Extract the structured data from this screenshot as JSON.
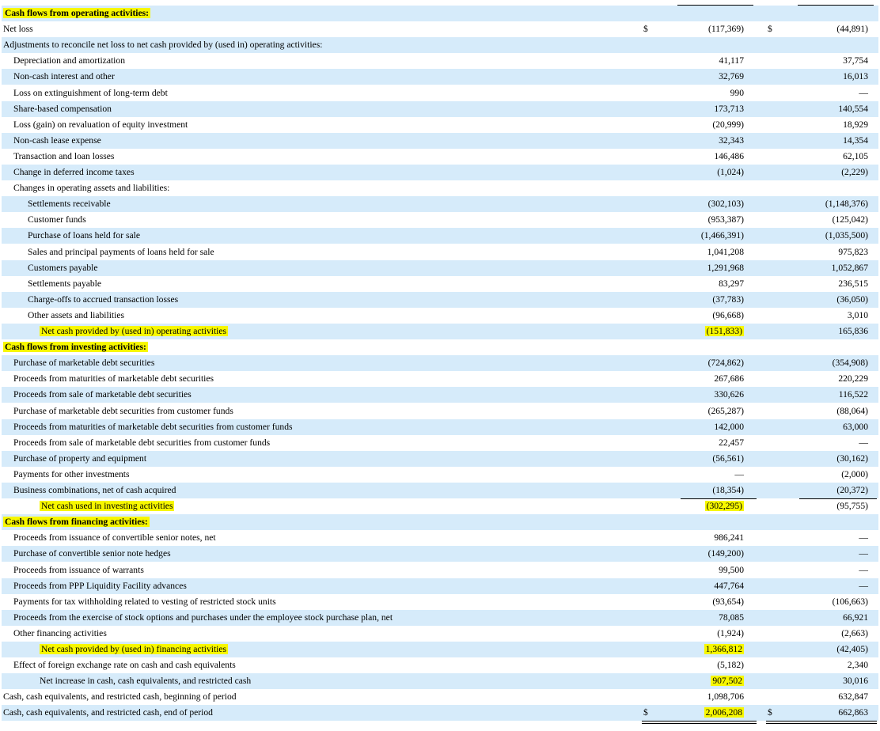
{
  "statement": {
    "rows": [
      {
        "label": "Cash flows from operating activities:",
        "type": "header",
        "shaded": true,
        "hl": true
      },
      {
        "label": "Net loss",
        "indent": 0,
        "shaded": false,
        "d1": "$",
        "v1": "(117,369)",
        "d2": "$",
        "v2": "(44,891)"
      },
      {
        "label": "Adjustments to reconcile net loss to net cash provided by (used in) operating activities:",
        "indent": 0,
        "shaded": true
      },
      {
        "label": "Depreciation and amortization",
        "indent": 1,
        "shaded": false,
        "v1": "41,117",
        "v2": "37,754"
      },
      {
        "label": "Non-cash interest and other",
        "indent": 1,
        "shaded": true,
        "v1": "32,769",
        "v2": "16,013"
      },
      {
        "label": "Loss on extinguishment of long-term debt",
        "indent": 1,
        "shaded": false,
        "v1": "990",
        "v2": "—"
      },
      {
        "label": "Share-based compensation",
        "indent": 1,
        "shaded": true,
        "v1": "173,713",
        "v2": "140,554"
      },
      {
        "label": "Loss (gain) on revaluation of equity investment",
        "indent": 1,
        "shaded": false,
        "v1": "(20,999)",
        "v2": "18,929"
      },
      {
        "label": "Non-cash lease expense",
        "indent": 1,
        "shaded": true,
        "v1": "32,343",
        "v2": "14,354"
      },
      {
        "label": "Transaction and loan losses",
        "indent": 1,
        "shaded": false,
        "v1": "146,486",
        "v2": "62,105"
      },
      {
        "label": "Change in deferred income taxes",
        "indent": 1,
        "shaded": true,
        "v1": "(1,024)",
        "v2": "(2,229)"
      },
      {
        "label": "Changes in operating assets and liabilities:",
        "indent": 1,
        "shaded": false
      },
      {
        "label": "Settlements receivable",
        "indent": 2,
        "shaded": true,
        "v1": "(302,103)",
        "v2": "(1,148,376)"
      },
      {
        "label": "Customer funds",
        "indent": 2,
        "shaded": false,
        "v1": "(953,387)",
        "v2": "(125,042)"
      },
      {
        "label": "Purchase of loans held for sale",
        "indent": 2,
        "shaded": true,
        "v1": "(1,466,391)",
        "v2": "(1,035,500)"
      },
      {
        "label": "Sales and principal payments of loans held for sale",
        "indent": 2,
        "shaded": false,
        "v1": "1,041,208",
        "v2": "975,823"
      },
      {
        "label": "Customers payable",
        "indent": 2,
        "shaded": true,
        "v1": "1,291,968",
        "v2": "1,052,867"
      },
      {
        "label": "Settlements payable",
        "indent": 2,
        "shaded": false,
        "v1": "83,297",
        "v2": "236,515"
      },
      {
        "label": "Charge-offs to accrued transaction losses",
        "indent": 2,
        "shaded": true,
        "v1": "(37,783)",
        "v2": "(36,050)"
      },
      {
        "label": "Other assets and liabilities",
        "indent": 2,
        "shaded": false,
        "v1": "(96,668)",
        "v2": "3,010",
        "under": true
      },
      {
        "label": "Net cash provided by (used in) operating activities",
        "indent": 3,
        "shaded": true,
        "hl": true,
        "v1": "(151,833)",
        "v2": "165,836",
        "v1hl": true
      },
      {
        "label": "Cash flows from investing activities:",
        "type": "header",
        "shaded": false,
        "hl": true
      },
      {
        "label": "Purchase of marketable debt securities",
        "indent": 1,
        "shaded": true,
        "v1": "(724,862)",
        "v2": "(354,908)"
      },
      {
        "label": "Proceeds from maturities of marketable debt securities",
        "indent": 1,
        "shaded": false,
        "v1": "267,686",
        "v2": "220,229"
      },
      {
        "label": "Proceeds from sale of marketable debt securities",
        "indent": 1,
        "shaded": true,
        "v1": "330,626",
        "v2": "116,522"
      },
      {
        "label": "Purchase of marketable debt securities from customer funds",
        "indent": 1,
        "shaded": false,
        "v1": "(265,287)",
        "v2": "(88,064)"
      },
      {
        "label": "Proceeds from maturities of marketable debt securities from customer funds",
        "indent": 1,
        "shaded": true,
        "v1": "142,000",
        "v2": "63,000"
      },
      {
        "label": "Proceeds from sale of marketable debt securities from customer funds",
        "indent": 1,
        "shaded": false,
        "v1": "22,457",
        "v2": "—"
      },
      {
        "label": "Purchase of property and equipment",
        "indent": 1,
        "shaded": true,
        "v1": "(56,561)",
        "v2": "(30,162)"
      },
      {
        "label": "Payments for other investments",
        "indent": 1,
        "shaded": false,
        "v1": "—",
        "v2": "(2,000)"
      },
      {
        "label": "Business combinations, net of cash acquired",
        "indent": 1,
        "shaded": true,
        "v1": "(18,354)",
        "v2": "(20,372)",
        "under": true
      },
      {
        "label": "Net cash used in investing activities",
        "indent": 3,
        "shaded": false,
        "hl": true,
        "v1": "(302,295)",
        "v2": "(95,755)",
        "v1hl": true
      },
      {
        "label": "Cash flows from financing activities:",
        "type": "header",
        "shaded": true,
        "hl": true
      },
      {
        "label": "Proceeds from issuance of convertible senior notes, net",
        "indent": 1,
        "shaded": false,
        "v1": "986,241",
        "v2": "—"
      },
      {
        "label": "Purchase of convertible senior note hedges",
        "indent": 1,
        "shaded": true,
        "v1": "(149,200)",
        "v2": "—"
      },
      {
        "label": "Proceeds from issuance of warrants",
        "indent": 1,
        "shaded": false,
        "v1": "99,500",
        "v2": "—"
      },
      {
        "label": "Proceeds from PPP Liquidity Facility advances",
        "indent": 1,
        "shaded": true,
        "v1": "447,764",
        "v2": "—"
      },
      {
        "label": "Payments for tax withholding related to vesting of restricted stock units",
        "indent": 1,
        "shaded": false,
        "v1": "(93,654)",
        "v2": "(106,663)"
      },
      {
        "label": "Proceeds from the exercise of stock options and purchases under the employee stock purchase plan, net",
        "indent": 1,
        "shaded": true,
        "v1": "78,085",
        "v2": "66,921"
      },
      {
        "label": "Other financing activities",
        "indent": 1,
        "shaded": false,
        "v1": "(1,924)",
        "v2": "(2,663)",
        "under": true
      },
      {
        "label": "Net cash provided by (used in) financing activities",
        "indent": 3,
        "shaded": true,
        "hl": true,
        "v1": "1,366,812",
        "v2": "(42,405)",
        "v1hl": true
      },
      {
        "label": "Effect of foreign exchange rate on cash and cash equivalents",
        "indent": 1,
        "shaded": false,
        "v1": "(5,182)",
        "v2": "2,340",
        "under": true
      },
      {
        "label": "Net increase in cash, cash equivalents, and restricted cash",
        "indent": 3,
        "shaded": true,
        "v1": "907,502",
        "v2": "30,016",
        "v1hl": true
      },
      {
        "label": "Cash, cash equivalents, and restricted cash, beginning of period",
        "indent": 0,
        "shaded": false,
        "v1": "1,098,706",
        "v2": "632,847",
        "under": true
      },
      {
        "label": "Cash, cash equivalents, and restricted cash, end of period",
        "indent": 0,
        "shaded": true,
        "d1": "$",
        "v1": "2,006,208",
        "d2": "$",
        "v2": "662,863",
        "v1hl": true,
        "double": true
      }
    ]
  },
  "colors": {
    "row_shade": "#d6ebfa",
    "highlight": "#f7f700",
    "text": "#000000"
  }
}
